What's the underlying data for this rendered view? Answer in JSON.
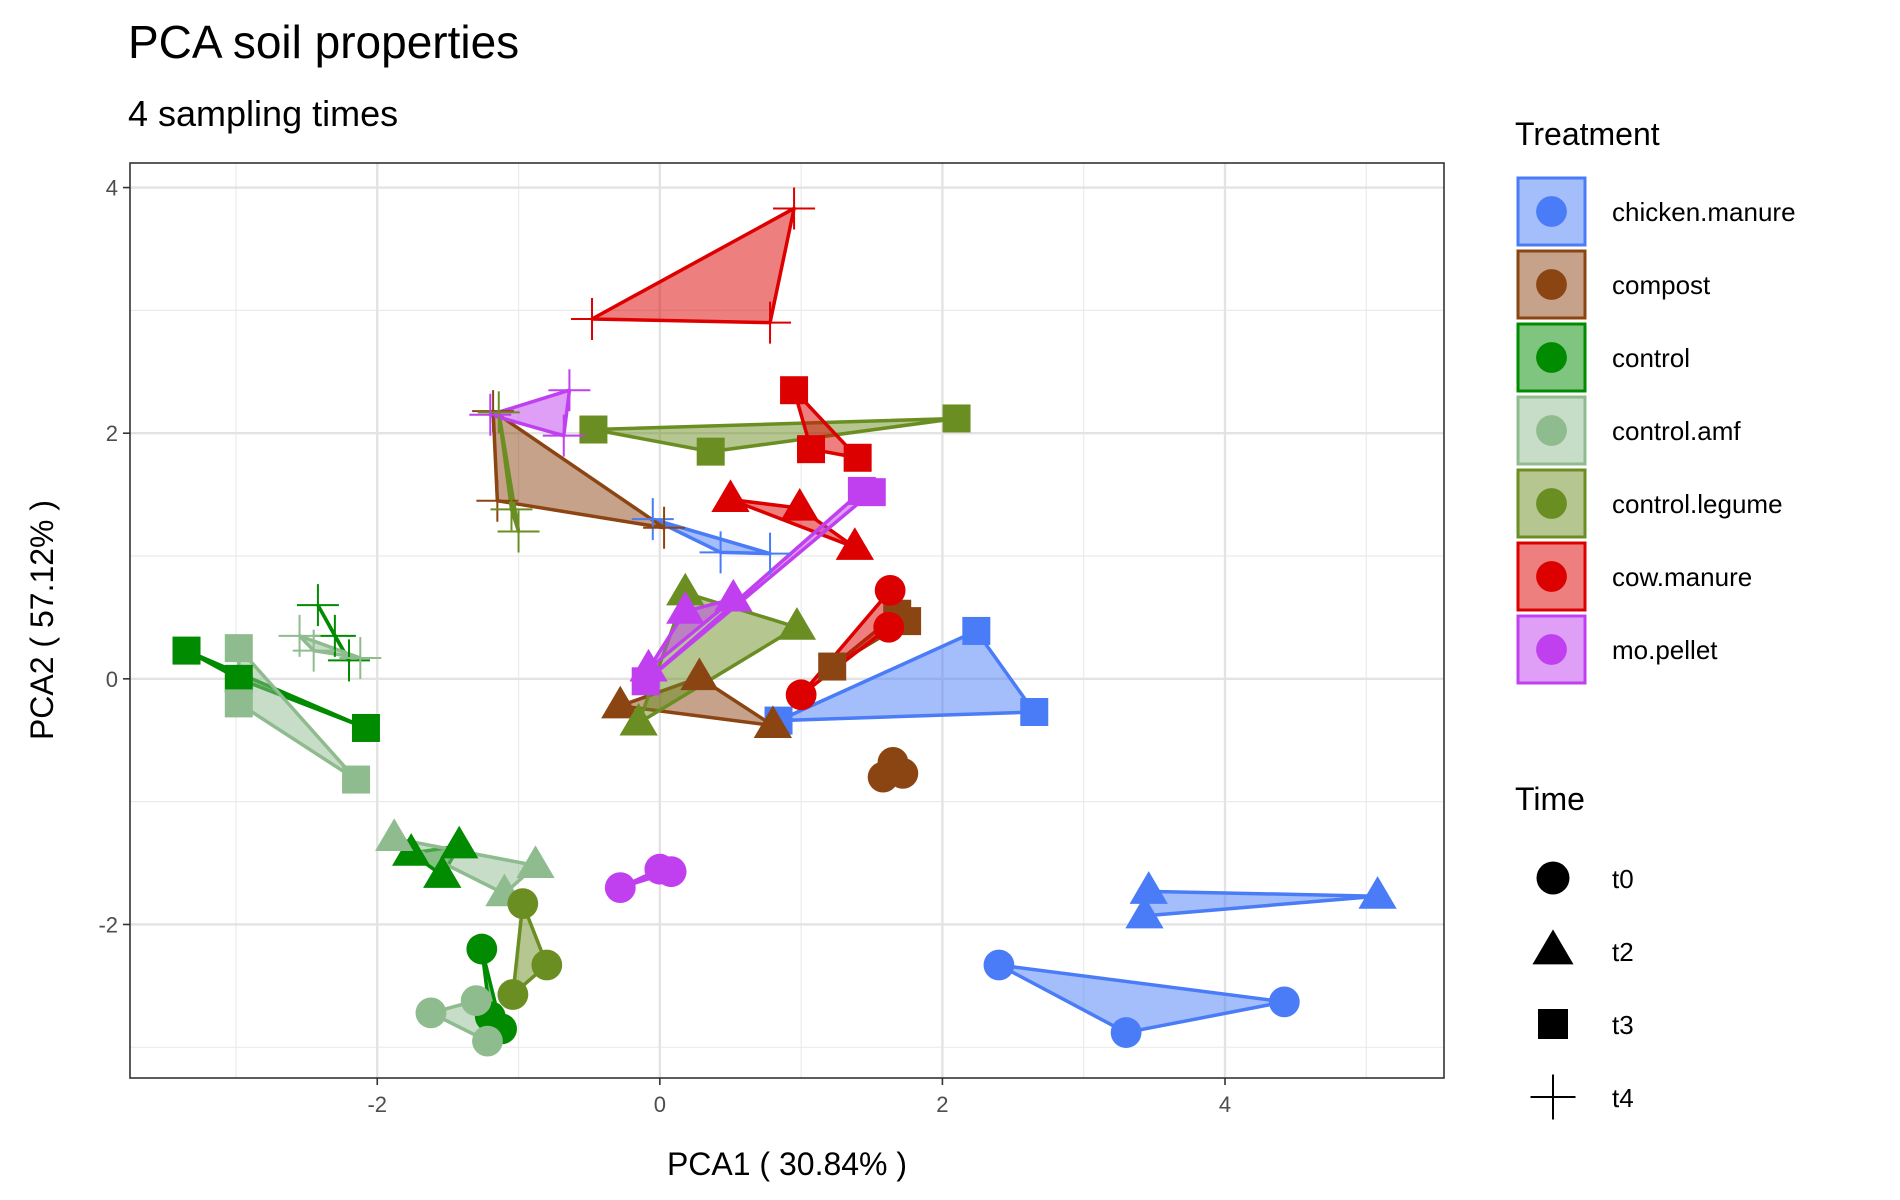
{
  "chart_data": {
    "type": "scatter",
    "title": "PCA soil properties",
    "subtitle": "4 sampling times",
    "xlabel": "PCA1 ( 30.84% )",
    "ylabel": "PCA2 ( 57.12% )",
    "xlim": [
      -3.75,
      5.55
    ],
    "ylim": [
      -3.25,
      4.2
    ],
    "xticks": [
      -2,
      0,
      2,
      4
    ],
    "yticks": [
      -2,
      0,
      2,
      4
    ],
    "xtick_labels": [
      "-2",
      "0",
      "2",
      "4"
    ],
    "ytick_labels": [
      "-2",
      "0",
      "2",
      "4"
    ],
    "grid": true,
    "legend_position": "right",
    "legend": {
      "treatment_title": "Treatment",
      "time_title": "Time",
      "treatments": [
        {
          "name": "chicken.manure",
          "color": "#4a7cf7"
        },
        {
          "name": "compost",
          "color": "#8b4513"
        },
        {
          "name": "control",
          "color": "#008b00"
        },
        {
          "name": "control.amf",
          "color": "#8fbc8f"
        },
        {
          "name": "control.legume",
          "color": "#6b8e23"
        },
        {
          "name": "cow.manure",
          "color": "#dd0000"
        },
        {
          "name": "mo.pellet",
          "color": "#c040f0"
        }
      ],
      "times": [
        {
          "name": "t0",
          "shape": "circle"
        },
        {
          "name": "t2",
          "shape": "triangle"
        },
        {
          "name": "t3",
          "shape": "square"
        },
        {
          "name": "t4",
          "shape": "plus"
        }
      ]
    },
    "series": [
      {
        "treatment": "chicken.manure",
        "time": "t0",
        "points": [
          [
            2.4,
            -2.33
          ],
          [
            3.3,
            -2.88
          ],
          [
            4.42,
            -2.63
          ]
        ]
      },
      {
        "treatment": "chicken.manure",
        "time": "t2",
        "points": [
          [
            3.46,
            -1.73
          ],
          [
            3.43,
            -1.93
          ],
          [
            5.08,
            -1.77
          ]
        ]
      },
      {
        "treatment": "chicken.manure",
        "time": "t3",
        "points": [
          [
            0.84,
            -0.34
          ],
          [
            2.24,
            0.39
          ],
          [
            2.65,
            -0.27
          ]
        ]
      },
      {
        "treatment": "chicken.manure",
        "time": "t4",
        "points": [
          [
            -0.05,
            1.3
          ],
          [
            0.43,
            1.03
          ],
          [
            0.78,
            1.02
          ]
        ]
      },
      {
        "treatment": "compost",
        "time": "t0",
        "points": [
          [
            1.65,
            -0.68
          ],
          [
            1.72,
            -0.77
          ],
          [
            1.58,
            -0.8
          ]
        ]
      },
      {
        "treatment": "compost",
        "time": "t2",
        "points": [
          [
            -0.28,
            -0.22
          ],
          [
            0.28,
            0.01
          ],
          [
            0.8,
            -0.38
          ]
        ]
      },
      {
        "treatment": "compost",
        "time": "t3",
        "points": [
          [
            1.22,
            0.1
          ],
          [
            1.68,
            0.53
          ],
          [
            1.75,
            0.47
          ]
        ]
      },
      {
        "treatment": "compost",
        "time": "t4",
        "points": [
          [
            -1.18,
            2.18
          ],
          [
            -1.15,
            1.45
          ],
          [
            0.03,
            1.23
          ]
        ]
      },
      {
        "treatment": "control",
        "time": "t0",
        "points": [
          [
            -1.26,
            -2.2
          ],
          [
            -1.2,
            -2.75
          ],
          [
            -1.12,
            -2.85
          ]
        ]
      },
      {
        "treatment": "control",
        "time": "t2",
        "points": [
          [
            -1.76,
            -1.42
          ],
          [
            -1.42,
            -1.36
          ],
          [
            -1.54,
            -1.6
          ]
        ]
      },
      {
        "treatment": "control",
        "time": "t3",
        "points": [
          [
            -3.35,
            0.23
          ],
          [
            -2.98,
            0.0
          ],
          [
            -2.08,
            -0.4
          ]
        ]
      },
      {
        "treatment": "control",
        "time": "t4",
        "points": [
          [
            -2.42,
            0.6
          ],
          [
            -2.3,
            0.35
          ],
          [
            -2.2,
            0.15
          ]
        ]
      },
      {
        "treatment": "control.amf",
        "time": "t0",
        "points": [
          [
            -1.62,
            -2.72
          ],
          [
            -1.3,
            -2.62
          ],
          [
            -1.22,
            -2.95
          ]
        ]
      },
      {
        "treatment": "control.amf",
        "time": "t2",
        "points": [
          [
            -1.88,
            -1.3
          ],
          [
            -1.1,
            -1.75
          ],
          [
            -0.88,
            -1.52
          ]
        ]
      },
      {
        "treatment": "control.amf",
        "time": "t3",
        "points": [
          [
            -2.98,
            0.25
          ],
          [
            -2.98,
            -0.2
          ],
          [
            -2.15,
            -0.82
          ]
        ]
      },
      {
        "treatment": "control.amf",
        "time": "t4",
        "points": [
          [
            -2.55,
            0.35
          ],
          [
            -2.45,
            0.23
          ],
          [
            -2.12,
            0.17
          ]
        ]
      },
      {
        "treatment": "control.legume",
        "time": "t0",
        "points": [
          [
            -0.97,
            -1.83
          ],
          [
            -1.04,
            -2.57
          ],
          [
            -0.8,
            -2.33
          ]
        ]
      },
      {
        "treatment": "control.legume",
        "time": "t2",
        "points": [
          [
            -0.15,
            -0.36
          ],
          [
            0.18,
            0.7
          ],
          [
            0.97,
            0.42
          ]
        ]
      },
      {
        "treatment": "control.legume",
        "time": "t3",
        "points": [
          [
            -0.47,
            2.03
          ],
          [
            0.36,
            1.85
          ],
          [
            2.1,
            2.12
          ]
        ]
      },
      {
        "treatment": "control.legume",
        "time": "t4",
        "points": [
          [
            -1.14,
            2.17
          ],
          [
            -1.05,
            1.38
          ],
          [
            -1.0,
            1.2
          ]
        ]
      },
      {
        "treatment": "cow.manure",
        "time": "t0",
        "points": [
          [
            1.0,
            -0.13
          ],
          [
            1.62,
            0.42
          ],
          [
            1.63,
            0.72
          ]
        ]
      },
      {
        "treatment": "cow.manure",
        "time": "t2",
        "points": [
          [
            0.5,
            1.46
          ],
          [
            0.99,
            1.39
          ],
          [
            1.38,
            1.07
          ]
        ]
      },
      {
        "treatment": "cow.manure",
        "time": "t3",
        "points": [
          [
            0.95,
            2.35
          ],
          [
            1.07,
            1.87
          ],
          [
            1.4,
            1.8
          ]
        ]
      },
      {
        "treatment": "cow.manure",
        "time": "t4",
        "points": [
          [
            -0.48,
            2.93
          ],
          [
            0.78,
            2.9
          ],
          [
            0.95,
            3.83
          ]
        ]
      },
      {
        "treatment": "mo.pellet",
        "time": "t0",
        "points": [
          [
            -0.28,
            -1.7
          ],
          [
            0.0,
            -1.55
          ],
          [
            0.08,
            -1.57
          ]
        ]
      },
      {
        "treatment": "mo.pellet",
        "time": "t2",
        "points": [
          [
            -0.08,
            0.08
          ],
          [
            0.18,
            0.55
          ],
          [
            0.52,
            0.65
          ]
        ]
      },
      {
        "treatment": "mo.pellet",
        "time": "t3",
        "points": [
          [
            -0.1,
            -0.02
          ],
          [
            1.43,
            1.53
          ],
          [
            1.5,
            1.52
          ]
        ]
      },
      {
        "treatment": "mo.pellet",
        "time": "t4",
        "points": [
          [
            -1.2,
            2.15
          ],
          [
            -0.64,
            2.35
          ],
          [
            -0.68,
            1.98
          ]
        ]
      }
    ]
  }
}
